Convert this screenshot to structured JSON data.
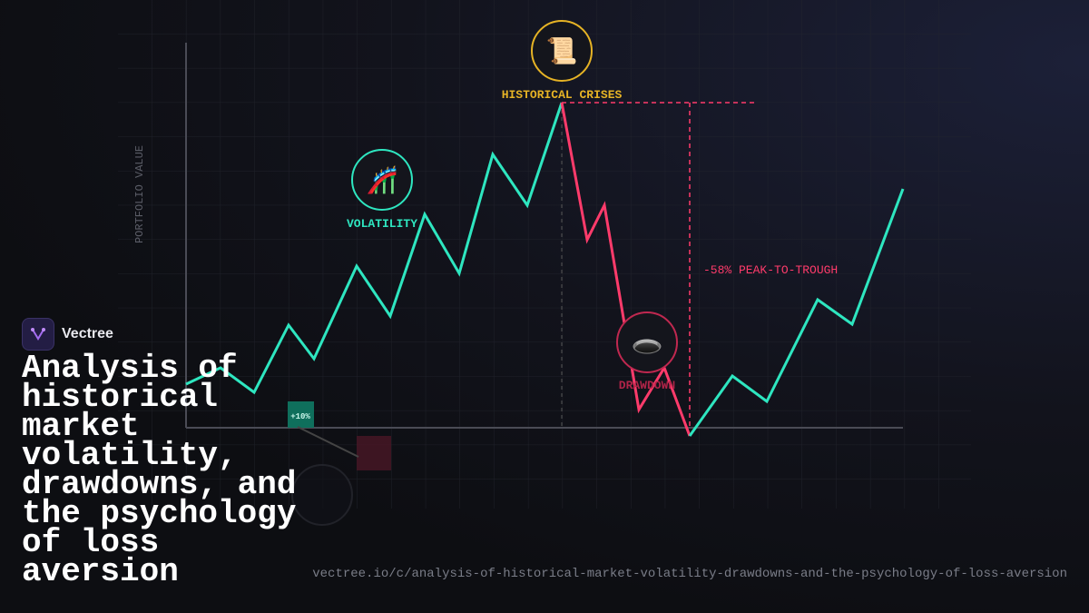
{
  "brand": {
    "name": "Vectree"
  },
  "title": "Analysis of historical market volatility, drawdowns, and the psychology of loss aversion",
  "url": "vectree.io/c/analysis-of-historical-market-volatility-drawdowns-and-the-psychology-of-loss-aversion",
  "illustration": {
    "axis_label": "PORTFOLIO VALUE",
    "crises": {
      "icon": "📜",
      "label": "HISTORICAL CRISES"
    },
    "volatility": {
      "icon": "🎢",
      "label": "VOLATILITY"
    },
    "drawdown": {
      "icon": "🕳️",
      "label": "DRAWDOWN"
    },
    "peak_to_trough": "-58% PEAK-TO-TROUGH",
    "gain_badge": "+10%"
  }
}
